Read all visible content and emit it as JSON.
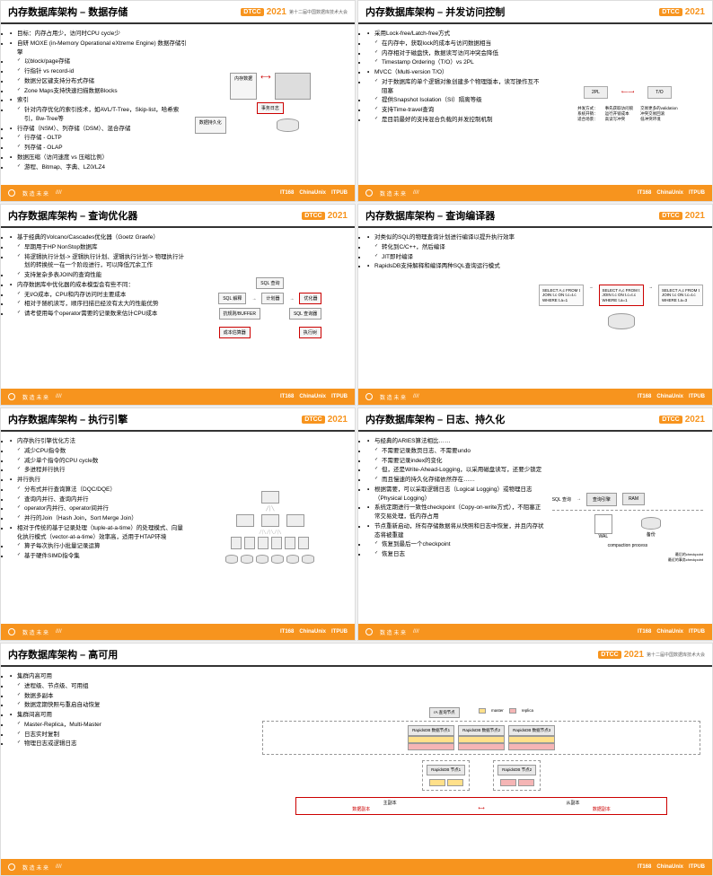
{
  "conf": {
    "name": "DTCC",
    "year": "2021",
    "sub": "第十二届中国数据库技术大会"
  },
  "footer": {
    "left": "数 造 未 来",
    "b1": "IT168",
    "b2": "ChinaUnix",
    "b3": "ITPUB"
  },
  "s1": {
    "title": "内存数据库架构 – 数据存储",
    "items": [
      {
        "t": "目标：内存占用少，访问时CPU cycle少",
        "l": 0
      },
      {
        "t": "自研 MOXE (in-Memory Operational eXtreme Engine) 数据存储引擎",
        "l": 0
      },
      {
        "t": "以block/page存储",
        "l": 1
      },
      {
        "t": "行指针 vs record-id",
        "l": 1
      },
      {
        "t": "数据分区键支持分布式存储",
        "l": 1
      },
      {
        "t": "Zone Maps支持快速扫描数据Blocks",
        "l": 1
      },
      {
        "t": "索引",
        "l": 0
      },
      {
        "t": "针对内存优化的索引技术，如AVL/T-Tree，Skip-list，哈希索引，Bw-Tree等",
        "l": 1
      },
      {
        "t": "行存储（NSM）、列存储（DSM）、混合存储",
        "l": 0
      },
      {
        "t": "行存储 - OLTP",
        "l": 1
      },
      {
        "t": "列存储 - OLAP",
        "l": 1
      },
      {
        "t": "数据压缩（访问速度 vs 压缩比例）",
        "l": 0
      },
      {
        "t": "游程、Bitmap、字典、LZ0/LZ4",
        "l": 1
      }
    ],
    "diag": {
      "b1": "内存数据",
      "b2": "事务日志",
      "b3": "数据持久化"
    }
  },
  "s2": {
    "title": "内存数据库架构 – 并发访问控制",
    "items": [
      {
        "t": "采用Lock-free/Latch-free方式",
        "l": 0
      },
      {
        "t": "在内存中，获取lock的成本与访问数据相当",
        "l": 1
      },
      {
        "t": "内存相对于磁盘快，数据读写访问冲突会降低",
        "l": 1
      },
      {
        "t": "Timestamp Ordering（T/O）vs 2PL",
        "l": 1
      },
      {
        "t": "MVCC（Multi-version T/O）",
        "l": 0
      },
      {
        "t": "对于数据库的单个逻辑对象创建多个物理版本，读写操作互不阻塞",
        "l": 1
      },
      {
        "t": "提供Snapshot Isolation（SI）隔离等级",
        "l": 1
      },
      {
        "t": "支持Time-travel查询",
        "l": 1
      },
      {
        "t": "是目前最好的支持混合负载的并发控制机制",
        "l": 1
      }
    ],
    "diag": {
      "h1": "2PL",
      "h2": "T/O",
      "r1l": "并发方式：",
      "r1a": "事先获取访问锁",
      "r1b": "交易更多的validation",
      "r2l": "系统开销：",
      "r2a": "运行开锁成本",
      "r2b": "冲突交易回滚",
      "r3l": "适合场景：",
      "r3a": "高读写冲突",
      "r3b": "低冲突环境"
    }
  },
  "s3": {
    "title": "内存数据库架构 – 查询优化器",
    "items": [
      {
        "t": "基于经典的Volcano/Cascades优化器（Goetz Graefe）",
        "l": 0
      },
      {
        "t": "早期用于HP NonStop数据库",
        "l": 1
      },
      {
        "t": "将逻辑执行计划-> 逻辑执行计划、逻辑执行计划-> 物理执行计划的转换统一在一个阶段进行，可以降低冗余工作",
        "l": 1
      },
      {
        "t": "支持复杂多表JOIN的查询性能",
        "l": 1
      },
      {
        "t": "内存数据库中优化器的成本模型会有些不同：",
        "l": 0
      },
      {
        "t": "无I/O成本，CPU和内存访问时主要成本",
        "l": 1
      },
      {
        "t": "相对于随机读写，顺序扫描已经没有太大的性能优势",
        "l": 1
      },
      {
        "t": "请考使用每个operator需要的记录数来估计CPU成本",
        "l": 1
      }
    ],
    "diag": {
      "b1": "SQL 查询",
      "b2": "SQL 解释",
      "b3": "计划器",
      "b4": "优化器",
      "b5": "SQL 查询器",
      "b6": "成本估算器",
      "b7": "执行树",
      "b8": "抗规则/BUFFER"
    }
  },
  "s4": {
    "title": "内存数据库架构 – 查询编译器",
    "items": [
      {
        "t": "对类似的SQL的物理查询计划进行编译以提升执行效率",
        "l": 0
      },
      {
        "t": "转化到C/C++，然后编译",
        "l": 1
      },
      {
        "t": "JIT即时编译",
        "l": 1
      },
      {
        "t": "RapidsDB支持解释和编译两种SQL查询运行模式",
        "l": 0
      }
    ],
    "diag": {
      "q1": "SELECT A,c\nFROM t\nJOIN t.c\nON t.c=t.c\nWHERE t.a=1",
      "q2": "SELECT A,c\nFROM t\nJOIN t.c\nON t.c=t.c\nWHERE t.a=1",
      "q3": "SELECT A,c\nFROM t\nJOIN t.c\nON t.c=t.c\nWHERE t.a=3"
    }
  },
  "s5": {
    "title": "内存数据库架构 – 执行引擎",
    "items": [
      {
        "t": "内存执行引擎优化方法",
        "l": 0
      },
      {
        "t": "减少CPU指令数",
        "l": 1
      },
      {
        "t": "减少单个指令的CPU cycle数",
        "l": 1
      },
      {
        "t": "多进程并行执行",
        "l": 1
      },
      {
        "t": "并行执行",
        "l": 0
      },
      {
        "t": "分布式并行查询算法（DQC/DQE）",
        "l": 1
      },
      {
        "t": "查询内并行、查询内并行",
        "l": 1
      },
      {
        "t": "operator内并行、operator间并行",
        "l": 1
      },
      {
        "t": "并行的Join（Hash Join，Sort Merge Join）",
        "l": 1
      },
      {
        "t": "相对于传统的基于记录处理（tuple-at-a-time）的处理模式、向量化执行模式（vector-at-a-time）效率高，适用于HTAP环境",
        "l": 0
      },
      {
        "t": "算子每次执行小批量记录运算",
        "l": 1
      },
      {
        "t": "基于硬件SIMD指令集",
        "l": 1
      }
    ]
  },
  "s6": {
    "title": "内存数据库架构 – 日志、持久化",
    "items": [
      {
        "t": "与经典的ARIES算法相比……",
        "l": 0
      },
      {
        "t": "不需要记录数页日志、不需要undo",
        "l": 1
      },
      {
        "t": "不需要记录index的变化",
        "l": 1
      },
      {
        "t": "但，还是Write-Ahead-Logging，以采用磁盘读写，还要少锁定",
        "l": 1
      },
      {
        "t": "而且慢速的持久化存储依然存在……",
        "l": 1
      },
      {
        "t": "根据需要，可以采取逻辑日志（Logical Logging）或物理日志（Physical Logging）",
        "l": 0
      },
      {
        "t": "系统定期进行一致性checkpoint（Copy-on-write方式），不阻塞正常交易处理，低内存占用",
        "l": 0
      },
      {
        "t": "节点重新启动，所有存储数据将从快照和日志中恢复，并且内存状态将被重建",
        "l": 0
      },
      {
        "t": "恢复到最后一个checkpoint",
        "l": 1
      },
      {
        "t": "恢复日志",
        "l": 1
      }
    ],
    "diag": {
      "b1": "SQL 查询",
      "b2": "查询引擎",
      "b3": "RAM",
      "b4": "WAL",
      "b5": "备份",
      "b6": "compaction process",
      "b7": "最后的checkpoint",
      "b8": "最近的事务checkpoint"
    }
  },
  "s7": {
    "title": "内存数据库架构 – 高可用",
    "items": [
      {
        "t": "集群内高可用",
        "l": 0
      },
      {
        "t": "进程级、节点级、可用组",
        "l": 1
      },
      {
        "t": "数据多副本",
        "l": 1
      },
      {
        "t": "数据定期快照与重启自动恢复",
        "l": 1
      },
      {
        "t": "集群间高可用",
        "l": 0
      },
      {
        "t": "Master-Replica，Multi-Master",
        "l": 1
      },
      {
        "t": "日志实时复制",
        "l": 1
      },
      {
        "t": "物理日志或逻辑日志",
        "l": 1
      }
    ],
    "diag": {
      "top": "rA 查询节点",
      "n1": "RapidsDB 数据节点1",
      "n2": "RapidsDB 数据节点2",
      "n3": "RapidsDB 数据节点3",
      "n4": "RapidsDB 节点1",
      "n5": "RapidsDB 节点2",
      "leg1": "master",
      "leg2": "replica",
      "b1": "主副本",
      "b2": "从副本",
      "b3": "数据副本",
      "b4": "数据副本"
    }
  }
}
